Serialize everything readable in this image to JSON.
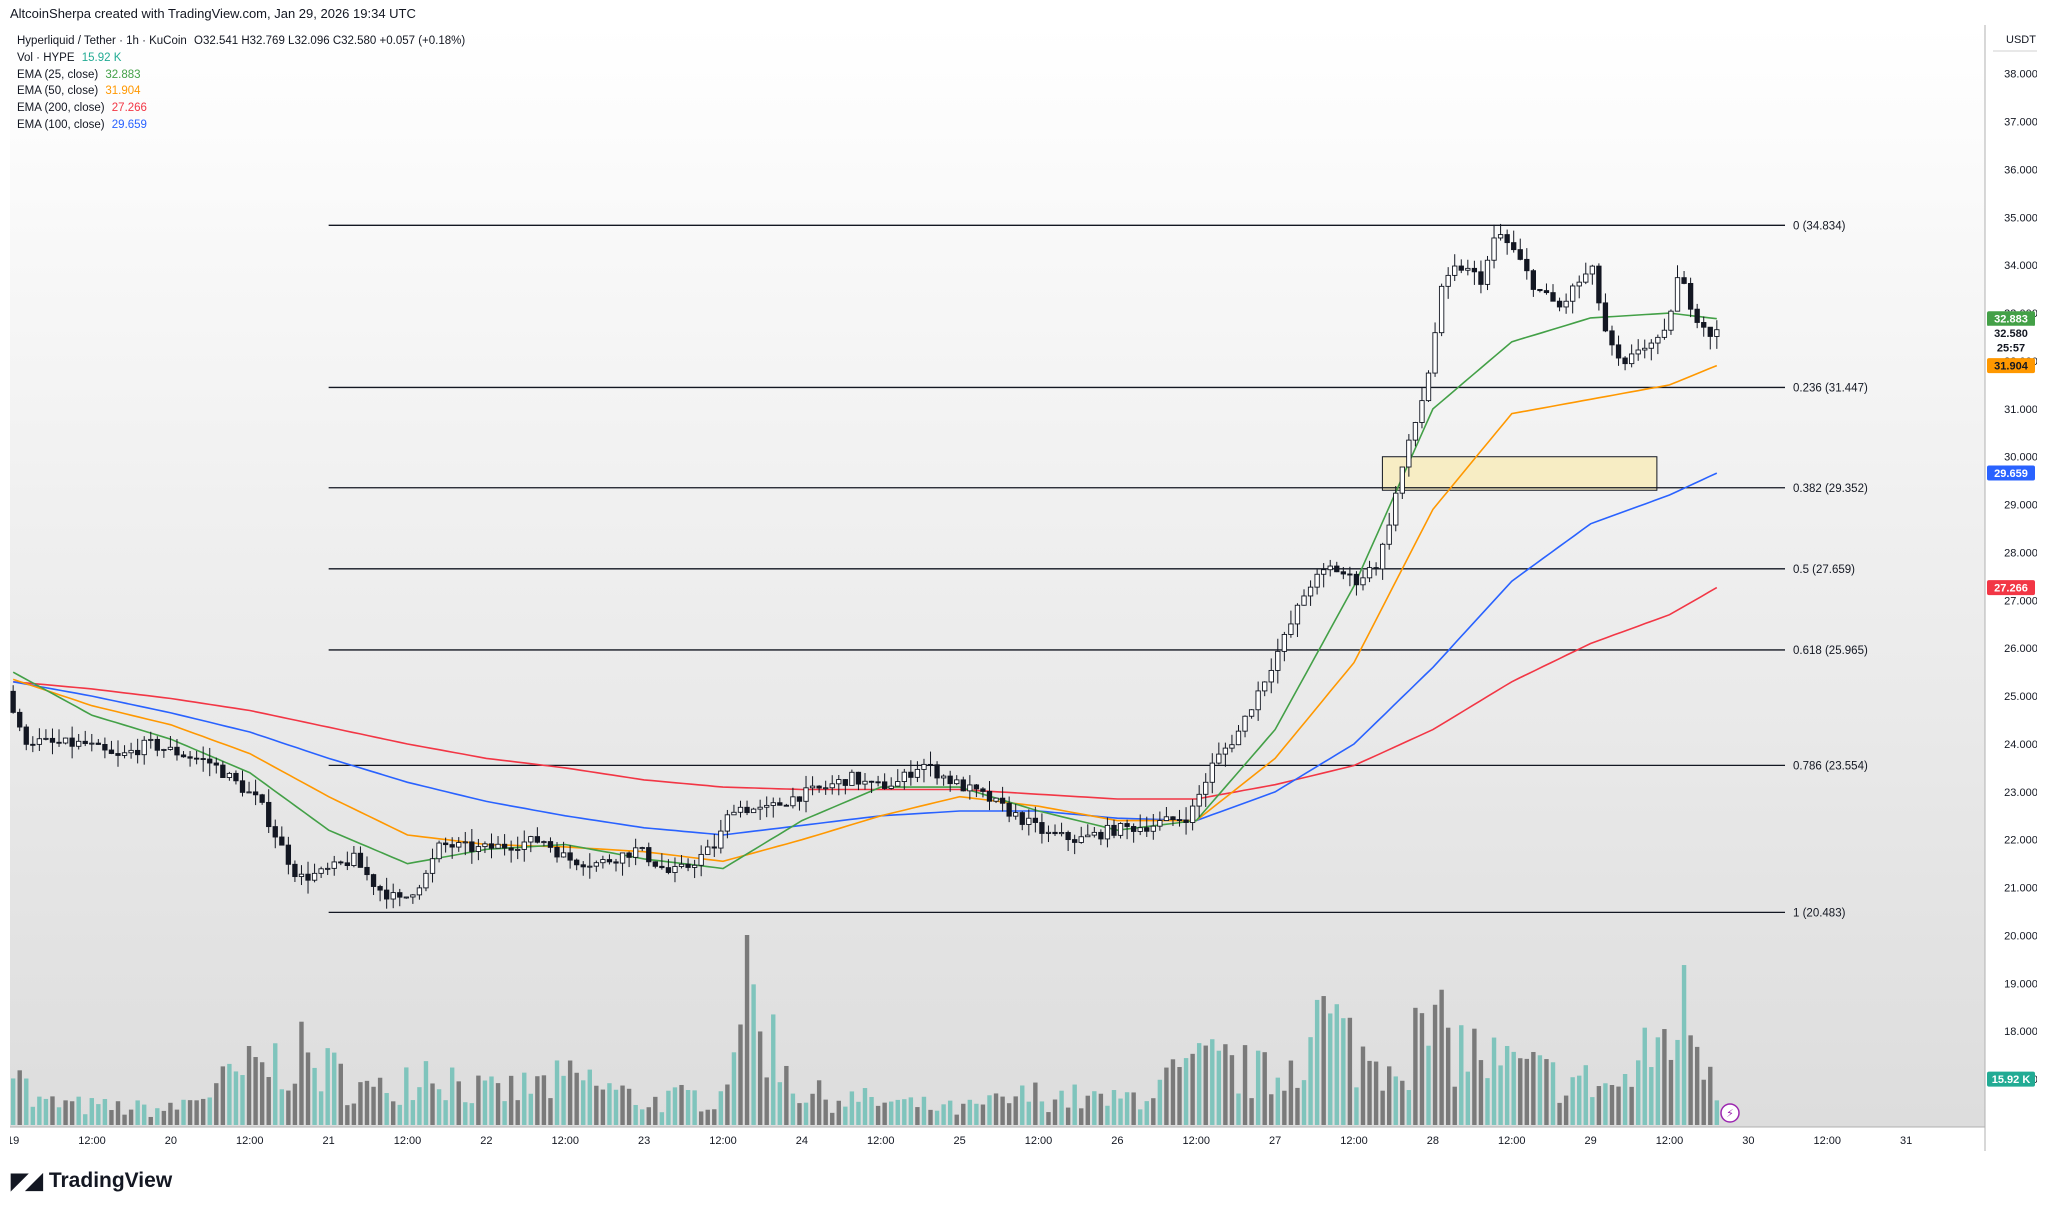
{
  "header": "AltcoinSherpa created with TradingView.com, Jan 29, 2026 19:34 UTC",
  "legend": {
    "symbol_line": {
      "symbol": "Hyperliquid / Tether · 1h · KuCoin",
      "open": "O32.541",
      "high": "H32.769",
      "low": "L32.096",
      "close": "C32.580",
      "change": "+0.057 (+0.18%)"
    },
    "volume": {
      "label": "Vol · HYPE",
      "value": "15.92 K",
      "color": "#22ab94"
    },
    "emas": [
      {
        "label": "EMA (25, close)",
        "value": "32.883",
        "color": "#43a047"
      },
      {
        "label": "EMA (50, close)",
        "value": "31.904",
        "color": "#ff9800"
      },
      {
        "label": "EMA (200, close)",
        "value": "27.266",
        "color": "#f23645"
      },
      {
        "label": "EMA (100, close)",
        "value": "29.659",
        "color": "#2962ff"
      }
    ]
  },
  "price_axis": {
    "currency": "USDT",
    "ticks": [
      "38.000",
      "37.000",
      "36.000",
      "35.000",
      "34.000",
      "33.000",
      "32.000",
      "31.000",
      "30.000",
      "29.000",
      "28.000",
      "27.000",
      "26.000",
      "25.000",
      "24.000",
      "23.000",
      "22.000",
      "21.000",
      "20.000",
      "19.000",
      "18.000",
      "17.000"
    ],
    "badges": [
      {
        "value": "32.883",
        "color": "#43a047",
        "text_color": "#ffffff",
        "price": 32.883
      },
      {
        "value": "32.580",
        "color": "#ffffff",
        "text_color": "#131722",
        "price": 32.58
      },
      {
        "value": "25:57",
        "color": "#ffffff",
        "text_color": "#131722",
        "price": 32.28
      },
      {
        "value": "31.904",
        "color": "#ff9800",
        "text_color": "#131722",
        "price": 31.904
      },
      {
        "value": "29.659",
        "color": "#2962ff",
        "text_color": "#ffffff",
        "price": 29.659
      },
      {
        "value": "27.266",
        "color": "#f23645",
        "text_color": "#ffffff",
        "price": 27.266
      },
      {
        "value": "15.92 K",
        "color": "#22ab94",
        "text_color": "#ffffff",
        "price": 17.0
      }
    ]
  },
  "time_axis": {
    "ticks": [
      "19",
      "12:00",
      "20",
      "12:00",
      "21",
      "12:00",
      "22",
      "12:00",
      "23",
      "12:00",
      "24",
      "12:00",
      "25",
      "12:00",
      "26",
      "12:00",
      "27",
      "12:00",
      "28",
      "12:00",
      "29",
      "12:00",
      "30",
      "12:00",
      "31"
    ]
  },
  "footer": {
    "brand": "TradingView"
  },
  "chart_data": {
    "type": "candlestick",
    "title": "Hyperliquid / Tether · 1h · KuCoin",
    "y_unit": "USDT",
    "price_range": [
      16.0,
      38.6
    ],
    "x_range_days": [
      "19",
      "31"
    ],
    "colors": {
      "up": "#ffffff",
      "down": "#131722",
      "vol_up": "#7fc4bc",
      "vol_down": "#7a7a7a",
      "fib_line": "#131722",
      "zone_fill": "#f7edc4"
    },
    "fibonacci": {
      "levels": [
        {
          "ratio": "0",
          "price": 34.834,
          "label": "0 (34.834)"
        },
        {
          "ratio": "0.236",
          "price": 31.447,
          "label": "0.236 (31.447)"
        },
        {
          "ratio": "0.382",
          "price": 29.352,
          "label": "0.382 (29.352)"
        },
        {
          "ratio": "0.5",
          "price": 27.659,
          "label": "0.5 (27.659)"
        },
        {
          "ratio": "0.618",
          "price": 25.965,
          "label": "0.618 (25.965)"
        },
        {
          "ratio": "0.786",
          "price": 23.554,
          "label": "0.786 (23.554)"
        },
        {
          "ratio": "1",
          "price": 20.483,
          "label": "1 (20.483)"
        }
      ],
      "start_day": 21.0
    },
    "zone": {
      "price_low": 29.3,
      "price_high": 30.0,
      "day_start": 27.68,
      "day_end": 29.42
    },
    "price_path": [
      {
        "d": 19.0,
        "p": 25.1
      },
      {
        "d": 19.1,
        "p": 24.1
      },
      {
        "d": 19.3,
        "p": 24.0
      },
      {
        "d": 19.5,
        "p": 24.0
      },
      {
        "d": 19.7,
        "p": 23.7
      },
      {
        "d": 19.9,
        "p": 24.0
      },
      {
        "d": 20.1,
        "p": 23.8
      },
      {
        "d": 20.3,
        "p": 23.6
      },
      {
        "d": 20.45,
        "p": 23.2
      },
      {
        "d": 20.6,
        "p": 22.8
      },
      {
        "d": 20.75,
        "p": 21.8
      },
      {
        "d": 20.85,
        "p": 21.2
      },
      {
        "d": 21.0,
        "p": 21.3
      },
      {
        "d": 21.2,
        "p": 21.6
      },
      {
        "d": 21.35,
        "p": 21.0
      },
      {
        "d": 21.5,
        "p": 20.7
      },
      {
        "d": 21.65,
        "p": 21.2
      },
      {
        "d": 21.75,
        "p": 21.9
      },
      {
        "d": 22.0,
        "p": 21.8
      },
      {
        "d": 22.2,
        "p": 21.9
      },
      {
        "d": 22.4,
        "p": 22.0
      },
      {
        "d": 22.55,
        "p": 21.6
      },
      {
        "d": 22.75,
        "p": 21.5
      },
      {
        "d": 23.0,
        "p": 21.8
      },
      {
        "d": 23.2,
        "p": 21.3
      },
      {
        "d": 23.3,
        "p": 21.4
      },
      {
        "d": 23.5,
        "p": 21.9
      },
      {
        "d": 23.6,
        "p": 22.7
      },
      {
        "d": 23.8,
        "p": 22.6
      },
      {
        "d": 24.0,
        "p": 22.9
      },
      {
        "d": 24.2,
        "p": 23.1
      },
      {
        "d": 24.35,
        "p": 23.3
      },
      {
        "d": 24.5,
        "p": 23.1
      },
      {
        "d": 24.65,
        "p": 23.2
      },
      {
        "d": 24.8,
        "p": 23.6
      },
      {
        "d": 25.0,
        "p": 23.2
      },
      {
        "d": 25.2,
        "p": 22.9
      },
      {
        "d": 25.4,
        "p": 22.5
      },
      {
        "d": 25.6,
        "p": 22.1
      },
      {
        "d": 25.8,
        "p": 22.0
      },
      {
        "d": 26.0,
        "p": 22.2
      },
      {
        "d": 26.25,
        "p": 22.3
      },
      {
        "d": 26.5,
        "p": 22.5
      },
      {
        "d": 26.65,
        "p": 23.6
      },
      {
        "d": 26.8,
        "p": 24.2
      },
      {
        "d": 26.95,
        "p": 25.2
      },
      {
        "d": 27.1,
        "p": 26.2
      },
      {
        "d": 27.25,
        "p": 27.3
      },
      {
        "d": 27.4,
        "p": 27.7
      },
      {
        "d": 27.55,
        "p": 27.4
      },
      {
        "d": 27.7,
        "p": 27.8
      },
      {
        "d": 27.85,
        "p": 29.8
      },
      {
        "d": 28.0,
        "p": 31.5
      },
      {
        "d": 28.1,
        "p": 33.5
      },
      {
        "d": 28.2,
        "p": 34.0
      },
      {
        "d": 28.35,
        "p": 33.7
      },
      {
        "d": 28.45,
        "p": 34.7
      },
      {
        "d": 28.55,
        "p": 34.3
      },
      {
        "d": 28.7,
        "p": 33.5
      },
      {
        "d": 28.85,
        "p": 33.1
      },
      {
        "d": 28.95,
        "p": 33.6
      },
      {
        "d": 29.05,
        "p": 33.9
      },
      {
        "d": 29.15,
        "p": 32.4
      },
      {
        "d": 29.25,
        "p": 31.8
      },
      {
        "d": 29.35,
        "p": 32.3
      },
      {
        "d": 29.5,
        "p": 32.4
      },
      {
        "d": 29.6,
        "p": 33.8
      },
      {
        "d": 29.7,
        "p": 33.0
      },
      {
        "d": 29.8,
        "p": 32.58
      }
    ],
    "volume_path": [
      {
        "d": 19.0,
        "v": 0.7
      },
      {
        "d": 19.1,
        "v": 0.15
      },
      {
        "d": 19.5,
        "v": 0.12
      },
      {
        "d": 20.0,
        "v": 0.1
      },
      {
        "d": 20.5,
        "v": 0.35
      },
      {
        "d": 20.8,
        "v": 0.45
      },
      {
        "d": 21.3,
        "v": 0.2
      },
      {
        "d": 21.6,
        "v": 0.4
      },
      {
        "d": 22.0,
        "v": 0.2
      },
      {
        "d": 22.6,
        "v": 0.3
      },
      {
        "d": 23.0,
        "v": 0.15
      },
      {
        "d": 23.5,
        "v": 0.2
      },
      {
        "d": 23.6,
        "v": 0.95
      },
      {
        "d": 24.0,
        "v": 0.2
      },
      {
        "d": 24.5,
        "v": 0.15
      },
      {
        "d": 25.0,
        "v": 0.1
      },
      {
        "d": 25.5,
        "v": 0.2
      },
      {
        "d": 26.0,
        "v": 0.15
      },
      {
        "d": 26.6,
        "v": 0.4
      },
      {
        "d": 27.0,
        "v": 0.3
      },
      {
        "d": 27.3,
        "v": 0.7
      },
      {
        "d": 27.6,
        "v": 0.4
      },
      {
        "d": 28.0,
        "v": 0.6
      },
      {
        "d": 28.4,
        "v": 0.4
      },
      {
        "d": 28.8,
        "v": 0.3
      },
      {
        "d": 29.2,
        "v": 0.25
      },
      {
        "d": 29.6,
        "v": 0.75
      },
      {
        "d": 29.8,
        "v": 0.3
      }
    ],
    "ema_lines": [
      {
        "name": "EMA (200, close)",
        "color": "#f23645",
        "points": [
          {
            "d": 19.0,
            "p": 25.3
          },
          {
            "d": 19.5,
            "p": 25.15
          },
          {
            "d": 20.0,
            "p": 24.95
          },
          {
            "d": 20.5,
            "p": 24.7
          },
          {
            "d": 21.0,
            "p": 24.35
          },
          {
            "d": 21.5,
            "p": 24.0
          },
          {
            "d": 22.0,
            "p": 23.7
          },
          {
            "d": 22.5,
            "p": 23.5
          },
          {
            "d": 23.0,
            "p": 23.25
          },
          {
            "d": 23.5,
            "p": 23.1
          },
          {
            "d": 24.0,
            "p": 23.05
          },
          {
            "d": 24.5,
            "p": 23.05
          },
          {
            "d": 25.0,
            "p": 23.05
          },
          {
            "d": 25.5,
            "p": 22.95
          },
          {
            "d": 26.0,
            "p": 22.85
          },
          {
            "d": 26.5,
            "p": 22.85
          },
          {
            "d": 27.0,
            "p": 23.15
          },
          {
            "d": 27.5,
            "p": 23.55
          },
          {
            "d": 28.0,
            "p": 24.3
          },
          {
            "d": 28.5,
            "p": 25.3
          },
          {
            "d": 29.0,
            "p": 26.1
          },
          {
            "d": 29.5,
            "p": 26.7
          },
          {
            "d": 29.8,
            "p": 27.266
          }
        ]
      },
      {
        "name": "EMA (100, close)",
        "color": "#2962ff",
        "points": [
          {
            "d": 19.0,
            "p": 25.3
          },
          {
            "d": 19.5,
            "p": 25.0
          },
          {
            "d": 20.0,
            "p": 24.65
          },
          {
            "d": 20.5,
            "p": 24.25
          },
          {
            "d": 21.0,
            "p": 23.7
          },
          {
            "d": 21.5,
            "p": 23.2
          },
          {
            "d": 22.0,
            "p": 22.8
          },
          {
            "d": 22.5,
            "p": 22.5
          },
          {
            "d": 23.0,
            "p": 22.25
          },
          {
            "d": 23.5,
            "p": 22.1
          },
          {
            "d": 24.0,
            "p": 22.3
          },
          {
            "d": 24.5,
            "p": 22.5
          },
          {
            "d": 25.0,
            "p": 22.6
          },
          {
            "d": 25.5,
            "p": 22.6
          },
          {
            "d": 26.0,
            "p": 22.45
          },
          {
            "d": 26.5,
            "p": 22.4
          },
          {
            "d": 27.0,
            "p": 23.0
          },
          {
            "d": 27.5,
            "p": 24.0
          },
          {
            "d": 28.0,
            "p": 25.6
          },
          {
            "d": 28.5,
            "p": 27.4
          },
          {
            "d": 29.0,
            "p": 28.6
          },
          {
            "d": 29.5,
            "p": 29.2
          },
          {
            "d": 29.8,
            "p": 29.659
          }
        ]
      },
      {
        "name": "EMA (50, close)",
        "color": "#ff9800",
        "points": [
          {
            "d": 19.0,
            "p": 25.35
          },
          {
            "d": 19.5,
            "p": 24.8
          },
          {
            "d": 20.0,
            "p": 24.4
          },
          {
            "d": 20.5,
            "p": 23.8
          },
          {
            "d": 21.0,
            "p": 22.9
          },
          {
            "d": 21.5,
            "p": 22.1
          },
          {
            "d": 22.0,
            "p": 21.9
          },
          {
            "d": 22.5,
            "p": 21.85
          },
          {
            "d": 23.0,
            "p": 21.75
          },
          {
            "d": 23.5,
            "p": 21.55
          },
          {
            "d": 24.0,
            "p": 22.0
          },
          {
            "d": 24.5,
            "p": 22.5
          },
          {
            "d": 25.0,
            "p": 22.9
          },
          {
            "d": 25.5,
            "p": 22.7
          },
          {
            "d": 26.0,
            "p": 22.4
          },
          {
            "d": 26.5,
            "p": 22.4
          },
          {
            "d": 27.0,
            "p": 23.7
          },
          {
            "d": 27.5,
            "p": 25.7
          },
          {
            "d": 28.0,
            "p": 28.9
          },
          {
            "d": 28.5,
            "p": 30.9
          },
          {
            "d": 29.0,
            "p": 31.2
          },
          {
            "d": 29.5,
            "p": 31.5
          },
          {
            "d": 29.8,
            "p": 31.904
          }
        ]
      },
      {
        "name": "EMA (25, close)",
        "color": "#43a047",
        "points": [
          {
            "d": 19.0,
            "p": 25.5
          },
          {
            "d": 19.5,
            "p": 24.6
          },
          {
            "d": 20.0,
            "p": 24.1
          },
          {
            "d": 20.5,
            "p": 23.4
          },
          {
            "d": 21.0,
            "p": 22.2
          },
          {
            "d": 21.5,
            "p": 21.5
          },
          {
            "d": 22.0,
            "p": 21.8
          },
          {
            "d": 22.5,
            "p": 21.9
          },
          {
            "d": 23.0,
            "p": 21.6
          },
          {
            "d": 23.5,
            "p": 21.4
          },
          {
            "d": 24.0,
            "p": 22.4
          },
          {
            "d": 24.5,
            "p": 23.1
          },
          {
            "d": 25.0,
            "p": 23.1
          },
          {
            "d": 25.5,
            "p": 22.6
          },
          {
            "d": 26.0,
            "p": 22.2
          },
          {
            "d": 26.5,
            "p": 22.4
          },
          {
            "d": 27.0,
            "p": 24.3
          },
          {
            "d": 27.5,
            "p": 27.3
          },
          {
            "d": 28.0,
            "p": 31.0
          },
          {
            "d": 28.5,
            "p": 32.4
          },
          {
            "d": 29.0,
            "p": 32.9
          },
          {
            "d": 29.5,
            "p": 33.0
          },
          {
            "d": 29.8,
            "p": 32.883
          }
        ]
      }
    ]
  }
}
